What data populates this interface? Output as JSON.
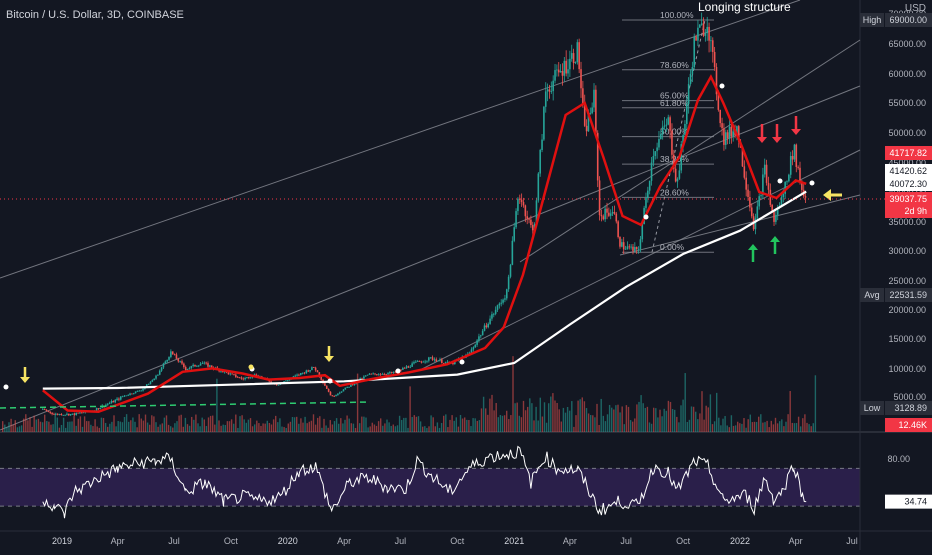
{
  "header": {
    "symbol": "Bitcoin / U.S. Dollar, 3D, COINBASE",
    "currency": "USD",
    "annotation_title": "Longing structure"
  },
  "colors": {
    "background": "#131722",
    "up": "#26a69a",
    "down": "#ef5350",
    "ma_fast": "#e01010",
    "ma_slow": "#ffffff",
    "rsi_fill": "#2a1f4a",
    "rsi_line": "#ffffff",
    "fib": "#9598a1",
    "arrow_yellow": "#f7e463",
    "arrow_red": "#f23645",
    "arrow_green": "#22c55e",
    "green_line": "#2ecc71"
  },
  "chart_data": [
    {
      "type": "candlestick",
      "title": "Bitcoin / U.S. Dollar, 3D, COINBASE",
      "y_axis_ticks": [
        "70000.00",
        "65000.00",
        "60000.00",
        "55000.00",
        "50000.00",
        "45000.00",
        "40000.00",
        "35000.00",
        "30000.00",
        "25000.00",
        "20000.00",
        "15000.00",
        "10000.00",
        "5000.00"
      ],
      "x_axis_ticks": [
        "2019",
        "Apr",
        "Jul",
        "Oct",
        "2020",
        "Apr",
        "Jul",
        "Oct",
        "2021",
        "Apr",
        "Jul",
        "Oct",
        "2022",
        "Apr",
        "Jul"
      ],
      "ylim": [
        3128.89,
        69000.0
      ],
      "price_tags": [
        {
          "label": "High",
          "value": "69000.00",
          "color": "#2a2e39"
        },
        {
          "label": "",
          "value": "41717.82",
          "color": "#f23645"
        },
        {
          "label": "",
          "value": "41420.62",
          "color": "#ffffff"
        },
        {
          "label": "",
          "value": "40072.30",
          "color": "#ffffff"
        },
        {
          "label": "",
          "value": "39037.75",
          "sub": "2d 9h",
          "color": "#f23645"
        },
        {
          "label": "Avg",
          "value": "22531.59",
          "color": "#2a2e39"
        },
        {
          "label": "Low",
          "value": "3128.89",
          "color": "#2a2e39"
        },
        {
          "label": "",
          "value": "12.46K",
          "color": "#f23645"
        }
      ],
      "price_path": [
        [
          "2018-12-01",
          4000
        ],
        [
          "2018-12-20",
          3600
        ],
        [
          "2019-01-20",
          3600
        ],
        [
          "2019-02-20",
          3900
        ],
        [
          "2019-04-01",
          4800
        ],
        [
          "2019-05-10",
          6300
        ],
        [
          "2019-06-01",
          8500
        ],
        [
          "2019-06-26",
          12800
        ],
        [
          "2019-07-20",
          10000
        ],
        [
          "2019-08-15",
          11000
        ],
        [
          "2019-09-20",
          9500
        ],
        [
          "2019-10-20",
          8200
        ],
        [
          "2019-11-10",
          9000
        ],
        [
          "2019-12-15",
          7200
        ],
        [
          "2020-01-15",
          8800
        ],
        [
          "2020-02-13",
          10300
        ],
        [
          "2020-03-12",
          5000
        ],
        [
          "2020-04-10",
          7000
        ],
        [
          "2020-05-10",
          9000
        ],
        [
          "2020-06-20",
          9300
        ],
        [
          "2020-07-25",
          11000
        ],
        [
          "2020-08-20",
          11800
        ],
        [
          "2020-09-20",
          10800
        ],
        [
          "2020-10-20",
          12500
        ],
        [
          "2020-11-20",
          18000
        ],
        [
          "2020-12-20",
          23000
        ],
        [
          "2021-01-08",
          40000
        ],
        [
          "2021-02-01",
          33000
        ],
        [
          "2021-02-21",
          57000
        ],
        [
          "2021-03-13",
          60000
        ],
        [
          "2021-04-14",
          64000
        ],
        [
          "2021-04-25",
          50000
        ],
        [
          "2021-05-10",
          56000
        ],
        [
          "2021-05-19",
          36000
        ],
        [
          "2021-06-10",
          37000
        ],
        [
          "2021-06-22",
          31000
        ],
        [
          "2021-07-20",
          29800
        ],
        [
          "2021-08-14",
          47000
        ],
        [
          "2021-09-07",
          52000
        ],
        [
          "2021-09-21",
          41000
        ],
        [
          "2021-10-20",
          66000
        ],
        [
          "2021-11-10",
          68800
        ],
        [
          "2021-11-28",
          54000
        ],
        [
          "2021-12-05",
          49000
        ],
        [
          "2021-12-27",
          51000
        ],
        [
          "2022-01-10",
          42000
        ],
        [
          "2022-01-24",
          34000
        ],
        [
          "2022-02-10",
          44000
        ],
        [
          "2022-02-24",
          35000
        ],
        [
          "2022-03-10",
          39000
        ],
        [
          "2022-03-29",
          47500
        ],
        [
          "2022-04-12",
          40000
        ],
        [
          "2022-04-18",
          39000
        ]
      ],
      "series": [
        {
          "name": "",
          "points": [
            [
              "2018-12-01",
              6500
            ],
            [
              "2019-04-01",
              6600
            ],
            [
              "2019-10-01",
              7200
            ],
            [
              "2020-04-01",
              7800
            ],
            [
              "2020-10-01",
              9000
            ],
            [
              "2021-01-01",
              11000
            ],
            [
              "2021-04-01",
              17500
            ],
            [
              "2021-07-01",
              24000
            ],
            [
              "2021-10-01",
              29500
            ],
            [
              "2022-01-01",
              33500
            ],
            [
              "2022-04-18",
              40072
            ]
          ]
        },
        {
          "name": "",
          "points": [
            [
              "2018-12-01",
              6200
            ],
            [
              "2019-01-10",
              3900
            ],
            [
              "2019-03-01",
              3800
            ],
            [
              "2019-05-20",
              5600
            ],
            [
              "2019-07-15",
              9500
            ],
            [
              "2019-09-01",
              10100
            ],
            [
              "2019-10-20",
              9200
            ],
            [
              "2019-12-01",
              8100
            ],
            [
              "2020-01-20",
              8400
            ],
            [
              "2020-03-01",
              8900
            ],
            [
              "2020-03-25",
              7000
            ],
            [
              "2020-05-15",
              8200
            ],
            [
              "2020-07-15",
              9400
            ],
            [
              "2020-09-15",
              10800
            ],
            [
              "2020-11-15",
              13500
            ],
            [
              "2020-12-15",
              17000
            ],
            [
              "2021-01-15",
              26000
            ],
            [
              "2021-02-20",
              40000
            ],
            [
              "2021-03-25",
              53000
            ],
            [
              "2021-04-25",
              55000
            ],
            [
              "2021-05-25",
              46000
            ],
            [
              "2021-06-25",
              36000
            ],
            [
              "2021-07-25",
              34500
            ],
            [
              "2021-08-25",
              41000
            ],
            [
              "2021-09-25",
              46000
            ],
            [
              "2021-10-25",
              55500
            ],
            [
              "2021-11-15",
              59500
            ],
            [
              "2021-12-05",
              55000
            ],
            [
              "2022-01-05",
              47500
            ],
            [
              "2022-02-01",
              40000
            ],
            [
              "2022-03-01",
              39000
            ],
            [
              "2022-04-01",
              42000
            ],
            [
              "2022-04-18",
              41420
            ]
          ]
        }
      ],
      "fib_levels": [
        {
          "label": "100.00%",
          "value": 69000
        },
        {
          "label": "78.60%",
          "value": 60700
        },
        {
          "label": "65.00%",
          "value": 55400
        },
        {
          "label": "61.80%",
          "value": 54200
        },
        {
          "label": "50.00%",
          "value": 49400
        },
        {
          "label": "38.20%",
          "value": 44800
        },
        {
          "label": "23.60%",
          "value": 39100
        },
        {
          "label": "0.00%",
          "value": 29800
        }
      ],
      "volume": {
        "last": "12.46K"
      }
    },
    {
      "type": "line",
      "title": "",
      "y_axis_ticks": [
        "80.00"
      ],
      "last_value": "34.74",
      "band": [
        30,
        70
      ],
      "rsi_path": [
        [
          "2018-12-01",
          38
        ],
        [
          "2018-12-20",
          30
        ],
        [
          "2019-01-05",
          22
        ],
        [
          "2019-01-20",
          45
        ],
        [
          "2019-02-10",
          52
        ],
        [
          "2019-03-01",
          60
        ],
        [
          "2019-04-01",
          70
        ],
        [
          "2019-05-01",
          75
        ],
        [
          "2019-06-01",
          78
        ],
        [
          "2019-06-25",
          80
        ],
        [
          "2019-07-20",
          45
        ],
        [
          "2019-08-20",
          55
        ],
        [
          "2019-09-20",
          35
        ],
        [
          "2019-10-20",
          40
        ],
        [
          "2019-11-20",
          35
        ],
        [
          "2019-12-20",
          40
        ],
        [
          "2020-01-20",
          68
        ],
        [
          "2020-02-15",
          72
        ],
        [
          "2020-03-12",
          25
        ],
        [
          "2020-04-10",
          55
        ],
        [
          "2020-05-10",
          60
        ],
        [
          "2020-06-10",
          50
        ],
        [
          "2020-07-10",
          48
        ],
        [
          "2020-07-28",
          78
        ],
        [
          "2020-08-20",
          62
        ],
        [
          "2020-09-20",
          45
        ],
        [
          "2020-10-20",
          70
        ],
        [
          "2020-11-20",
          82
        ],
        [
          "2020-12-20",
          85
        ],
        [
          "2021-01-10",
          88
        ],
        [
          "2021-01-28",
          55
        ],
        [
          "2021-02-20",
          83
        ],
        [
          "2021-03-10",
          70
        ],
        [
          "2021-04-14",
          68
        ],
        [
          "2021-05-19",
          25
        ],
        [
          "2021-06-20",
          35
        ],
        [
          "2021-07-20",
          30
        ],
        [
          "2021-08-15",
          72
        ],
        [
          "2021-09-07",
          65
        ],
        [
          "2021-09-21",
          45
        ],
        [
          "2021-10-20",
          78
        ],
        [
          "2021-11-10",
          72
        ],
        [
          "2021-12-05",
          35
        ],
        [
          "2022-01-10",
          42
        ],
        [
          "2022-01-24",
          28
        ],
        [
          "2022-02-10",
          60
        ],
        [
          "2022-02-24",
          38
        ],
        [
          "2022-03-10",
          45
        ],
        [
          "2022-03-29",
          75
        ],
        [
          "2022-04-12",
          40
        ],
        [
          "2022-04-18",
          34.74
        ]
      ]
    }
  ]
}
